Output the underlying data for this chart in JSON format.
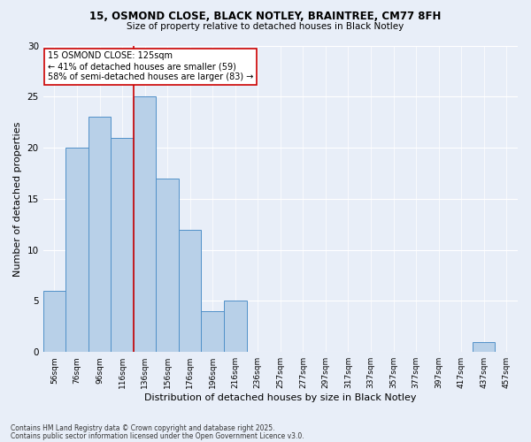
{
  "title1": "15, OSMOND CLOSE, BLACK NOTLEY, BRAINTREE, CM77 8FH",
  "title2": "Size of property relative to detached houses in Black Notley",
  "xlabel": "Distribution of detached houses by size in Black Notley",
  "ylabel": "Number of detached properties",
  "categories": [
    "56sqm",
    "76sqm",
    "96sqm",
    "116sqm",
    "136sqm",
    "156sqm",
    "176sqm",
    "196sqm",
    "216sqm",
    "236sqm",
    "257sqm",
    "277sqm",
    "297sqm",
    "317sqm",
    "337sqm",
    "357sqm",
    "377sqm",
    "397sqm",
    "417sqm",
    "437sqm",
    "457sqm"
  ],
  "values": [
    6,
    20,
    23,
    21,
    25,
    17,
    12,
    4,
    5,
    0,
    0,
    0,
    0,
    0,
    0,
    0,
    0,
    0,
    0,
    1,
    0
  ],
  "bar_color": "#b8d0e8",
  "bar_edge_color": "#5090c8",
  "red_line_x": 3.5,
  "annotation_title": "15 OSMOND CLOSE: 125sqm",
  "annotation_line1": "← 41% of detached houses are smaller (59)",
  "annotation_line2": "58% of semi-detached houses are larger (83) →",
  "footer1": "Contains HM Land Registry data © Crown copyright and database right 2025.",
  "footer2": "Contains public sector information licensed under the Open Government Licence v3.0.",
  "ylim": [
    0,
    30
  ],
  "yticks": [
    0,
    5,
    10,
    15,
    20,
    25,
    30
  ],
  "bg_color": "#e8eef8",
  "annotation_box_color": "#ffffff",
  "annotation_box_edge": "#cc0000"
}
